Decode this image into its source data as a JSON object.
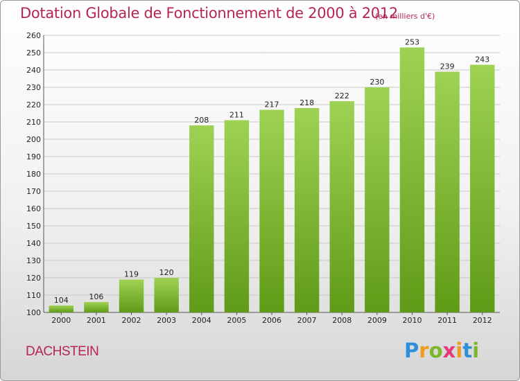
{
  "header": {
    "title": "Dotation Globale de Fonctionnement de 2000 à 2012",
    "unit": "(en milliers d'€)"
  },
  "footer": {
    "commune": "DACHSTEIN",
    "brand_letters": [
      {
        "ch": "P",
        "color": "#2f8ed8"
      },
      {
        "ch": "r",
        "color": "#f29a1e"
      },
      {
        "ch": "o",
        "color": "#7ab829"
      },
      {
        "ch": "x",
        "color": "#e23a7a"
      },
      {
        "ch": "i",
        "color": "#f29a1e"
      },
      {
        "ch": "t",
        "color": "#2f8ed8"
      },
      {
        "ch": "i",
        "color": "#7ab829"
      }
    ]
  },
  "colors": {
    "title": "#b5254f",
    "bar_light": "#9fd254",
    "bar_dark": "#5f9b16",
    "grid": "#c8c8c8",
    "axis_text": "#222222"
  },
  "chart_data": {
    "type": "bar",
    "categories": [
      "2000",
      "2001",
      "2002",
      "2003",
      "2004",
      "2005",
      "2006",
      "2007",
      "2008",
      "2009",
      "2010",
      "2011",
      "2012"
    ],
    "values": [
      104,
      106,
      119,
      120,
      208,
      211,
      217,
      218,
      222,
      230,
      253,
      239,
      243
    ],
    "ylim": [
      100,
      260
    ],
    "yticks": [
      100,
      110,
      120,
      130,
      140,
      150,
      160,
      170,
      180,
      190,
      200,
      210,
      220,
      230,
      240,
      250,
      260
    ],
    "grid": true,
    "data_labels": true
  }
}
